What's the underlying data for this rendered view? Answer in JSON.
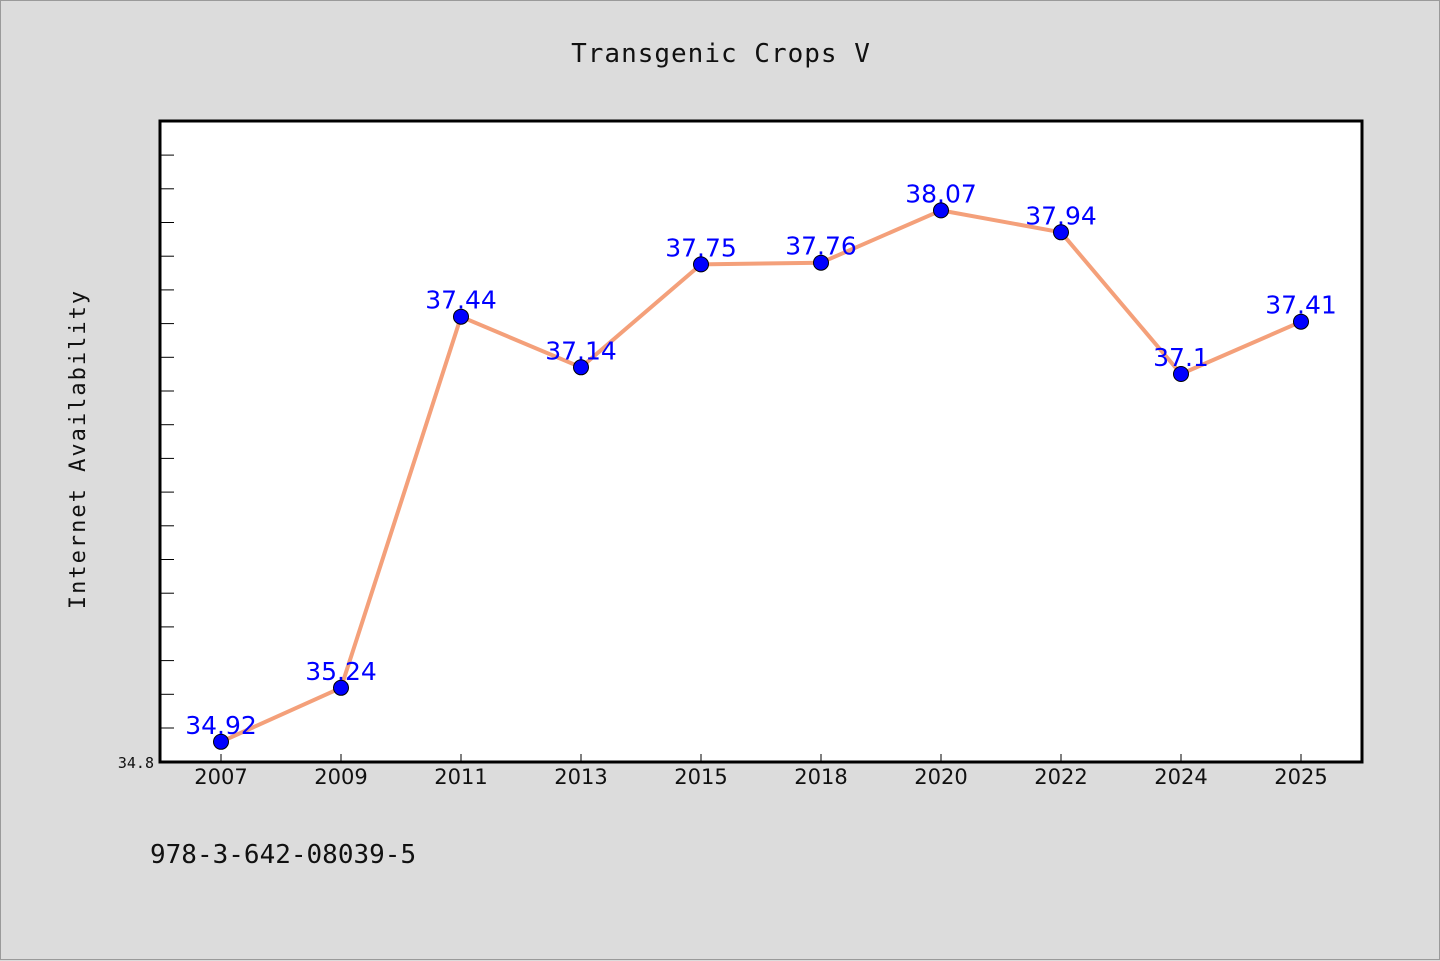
{
  "chart_data": {
    "type": "line",
    "title": "Transgenic Crops V",
    "xlabel": "",
    "ylabel": "Internet Availability",
    "categories": [
      "2007",
      "2009",
      "2011",
      "2013",
      "2015",
      "2018",
      "2020",
      "2022",
      "2024",
      "2025"
    ],
    "series": [
      {
        "values": [
          34.92,
          35.24,
          37.44,
          37.14,
          37.75,
          37.76,
          38.07,
          37.94,
          37.1,
          37.41
        ],
        "data_labels": [
          "34.92",
          "35.24",
          "37.44",
          "37.14",
          "37.75",
          "37.76",
          "38.07",
          "37.94",
          "37.1",
          "37.41"
        ]
      }
    ],
    "yticks_labeled": [
      "34.8"
    ],
    "ylim": [
      34.8,
      38.6
    ],
    "grid": false,
    "line_color": "#f4a07a",
    "marker_color": "#0000ff",
    "label_color": "#0000ff"
  },
  "footer": {
    "isbn": "978-3-642-08039-5"
  }
}
